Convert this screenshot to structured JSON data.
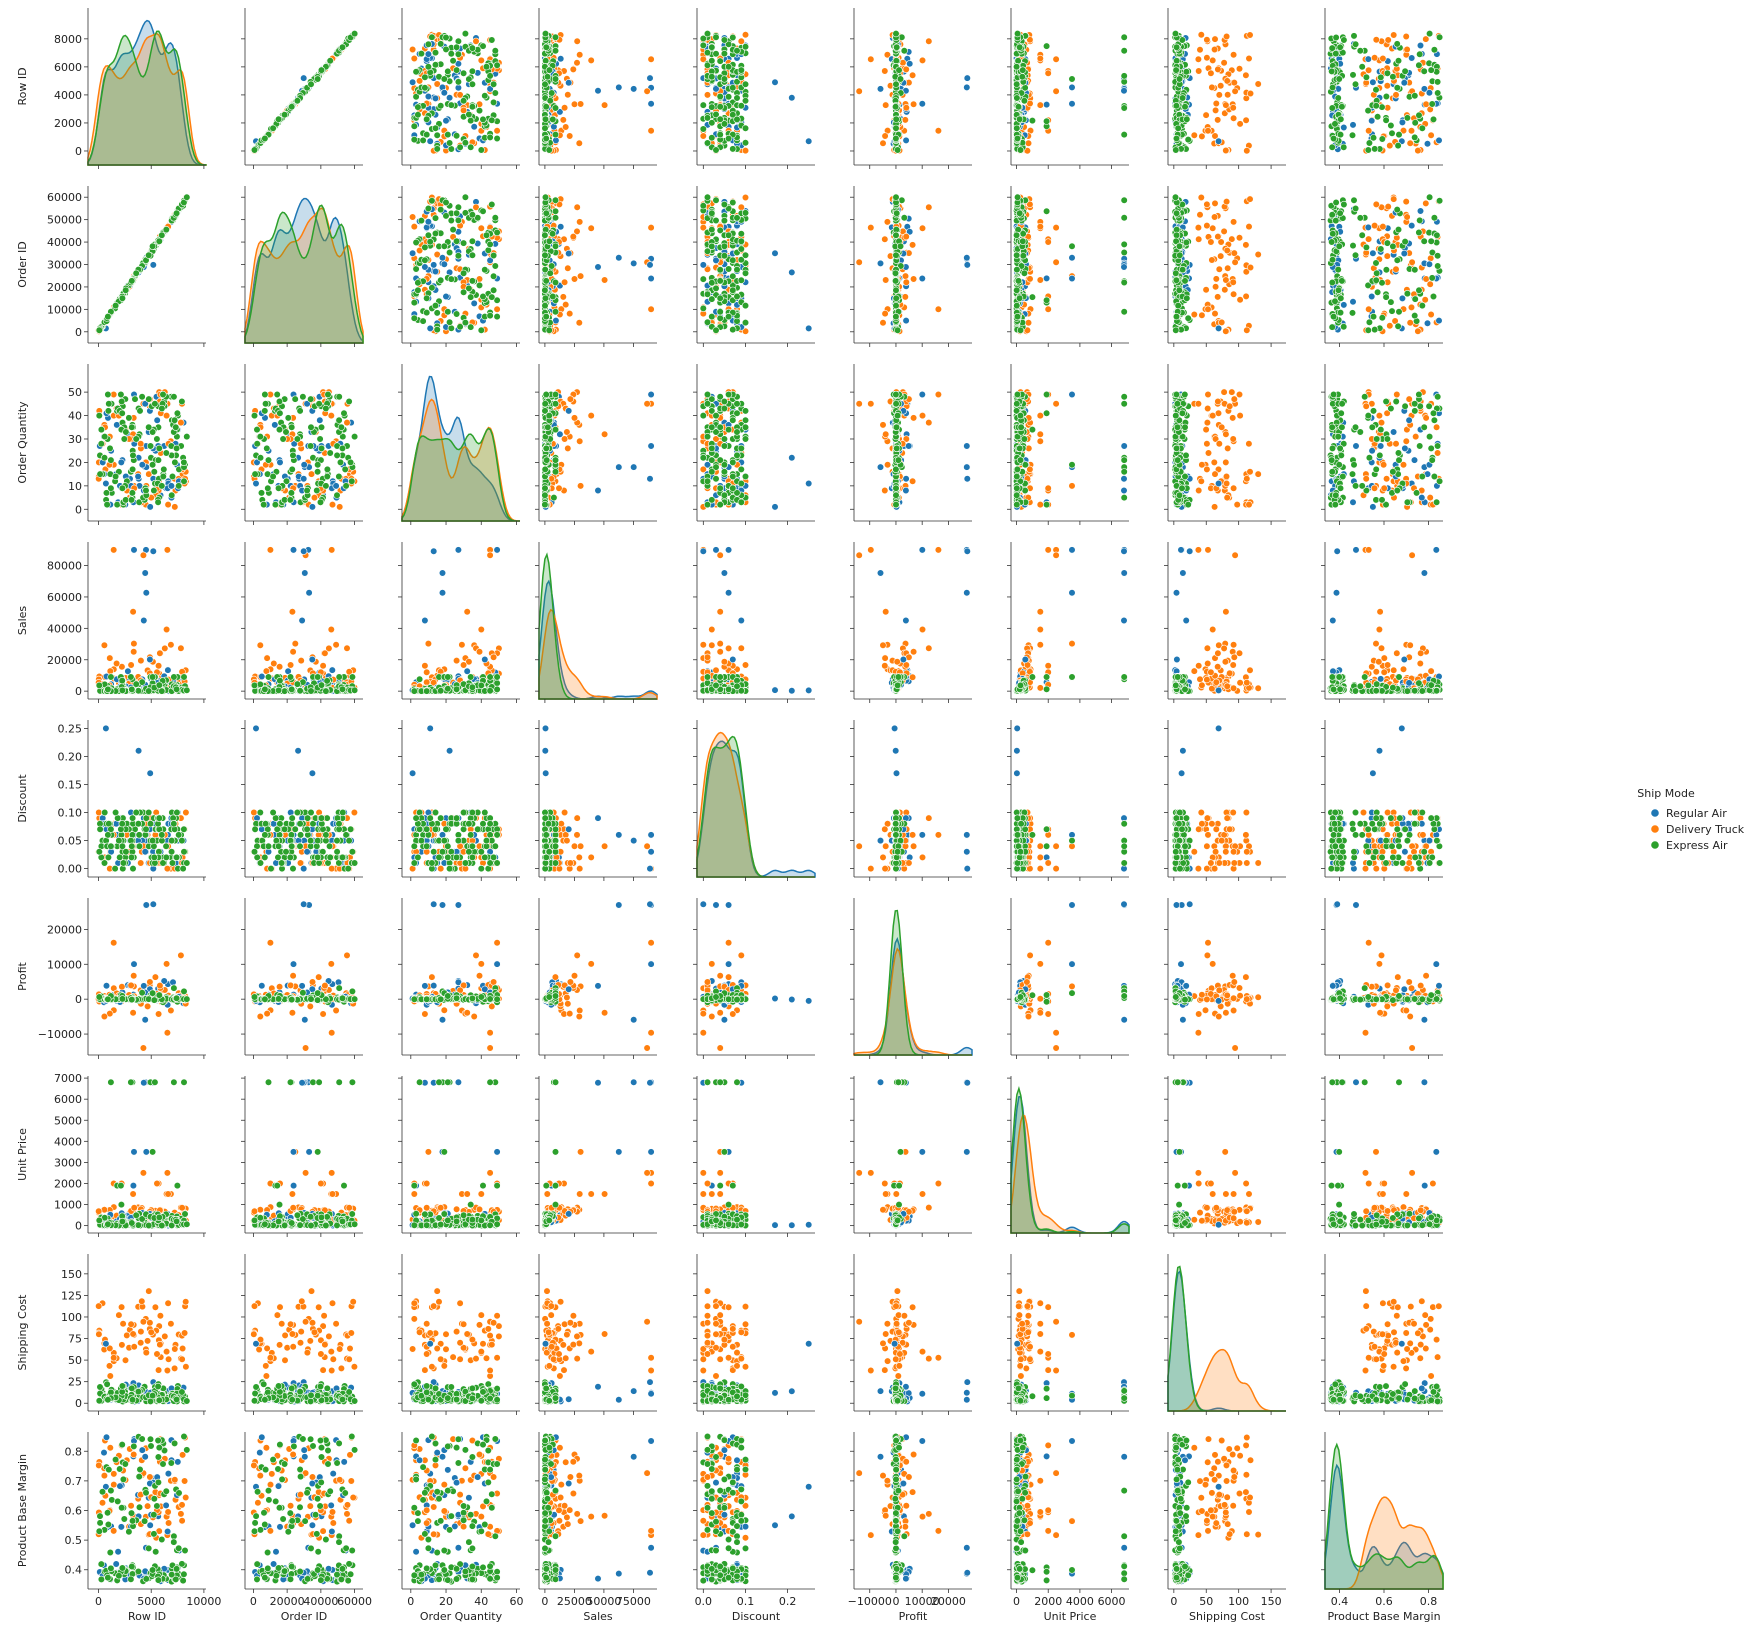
{
  "chart_data": {
    "type": "scatter",
    "variables": [
      {
        "name": "Row ID",
        "lim": [
          -1000,
          10200
        ],
        "ticks": [
          0,
          5000,
          10000
        ],
        "tick_labels": [
          "0",
          "5000",
          "10000"
        ]
      },
      {
        "name": "Order ID",
        "lim": [
          -5000,
          65000
        ],
        "ticks": [
          0,
          20000,
          40000,
          60000
        ],
        "tick_labels": [
          "0",
          "20000",
          "40000",
          "60000"
        ]
      },
      {
        "name": "Order Quantity",
        "lim": [
          -5,
          62
        ],
        "ticks": [
          0,
          20,
          40,
          60
        ],
        "tick_labels": [
          "0",
          "20",
          "40",
          "60"
        ]
      },
      {
        "name": "Sales",
        "lim": [
          -5000,
          95000
        ],
        "ticks": [
          0,
          25000,
          50000,
          75000
        ],
        "tick_labels": [
          "0",
          "25000",
          "50000",
          "75000"
        ]
      },
      {
        "name": "Discount",
        "lim": [
          -0.015,
          0.265
        ],
        "ticks": [
          0.0,
          0.1,
          0.2
        ],
        "tick_labels": [
          "0.0",
          "0.1",
          "0.2"
        ],
        "ytick_labels": [
          "0.00",
          "0.05",
          "0.10",
          "0.15",
          "0.20",
          "0.25"
        ],
        "yticks": [
          0,
          0.05,
          0.1,
          0.15,
          0.2,
          0.25
        ]
      },
      {
        "name": "Profit",
        "lim": [
          -16000,
          29000
        ],
        "ticks": [
          -10000,
          0,
          10000,
          20000
        ],
        "tick_labels": [
          "−10000",
          "0",
          "10000",
          "20000"
        ]
      },
      {
        "name": "Unit Price",
        "lim": [
          -350,
          7100
        ],
        "ticks": [
          0,
          2000,
          4000,
          6000
        ],
        "tick_labels": [
          "0",
          "2000",
          "4000",
          "6000"
        ],
        "yticks": [
          0,
          1000,
          2000,
          3000,
          4000,
          5000,
          6000,
          7000
        ],
        "ytick_labels": [
          "0",
          "1000",
          "2000",
          "3000",
          "4000",
          "5000",
          "6000",
          "7000"
        ]
      },
      {
        "name": "Shipping Cost",
        "lim": [
          -9,
          173
        ],
        "ticks": [
          0,
          50,
          100,
          150
        ],
        "tick_labels": [
          "0",
          "50",
          "100",
          "150"
        ],
        "yticks": [
          0,
          25,
          50,
          75,
          100,
          125,
          150
        ],
        "ytick_labels": [
          "0",
          "25",
          "50",
          "75",
          "100",
          "125",
          "150"
        ]
      },
      {
        "name": "Product Base Margin",
        "lim": [
          0.335,
          0.865
        ],
        "ticks": [
          0.4,
          0.6,
          0.8
        ],
        "tick_labels": [
          "0.4",
          "0.6",
          "0.8"
        ],
        "yticks": [
          0.4,
          0.5,
          0.6,
          0.7,
          0.8
        ],
        "ytick_labels": [
          "0.4",
          "0.5",
          "0.6",
          "0.7",
          "0.8"
        ]
      }
    ],
    "row_yticks": {
      "Row ID": {
        "values": [
          0,
          2000,
          4000,
          6000,
          8000
        ],
        "labels": [
          "0",
          "2000",
          "4000",
          "6000",
          "8000"
        ]
      },
      "Order ID": {
        "values": [
          0,
          10000,
          20000,
          30000,
          40000,
          50000,
          60000
        ],
        "labels": [
          "0",
          "10000",
          "20000",
          "30000",
          "40000",
          "50000",
          "60000"
        ]
      },
      "Order Quantity": {
        "values": [
          0,
          10,
          20,
          30,
          40,
          50
        ],
        "labels": [
          "0",
          "10",
          "20",
          "30",
          "40",
          "50"
        ]
      },
      "Sales": {
        "values": [
          0,
          20000,
          40000,
          60000,
          80000
        ],
        "labels": [
          "0",
          "20000",
          "40000",
          "60000",
          "80000"
        ]
      },
      "Profit": {
        "values": [
          -10000,
          0,
          10000,
          20000
        ],
        "labels": [
          "−10000",
          "0",
          "10000",
          "20000"
        ]
      }
    },
    "legend": {
      "title": "Ship Mode",
      "placement": "center-right",
      "entries": [
        {
          "name": "Regular Air",
          "color": "#1f77b4"
        },
        {
          "name": "Delivery Truck",
          "color": "#ff7f0e"
        },
        {
          "name": "Express Air",
          "color": "#2ca02c"
        }
      ]
    },
    "diagonal": "kde",
    "grid": false
  }
}
